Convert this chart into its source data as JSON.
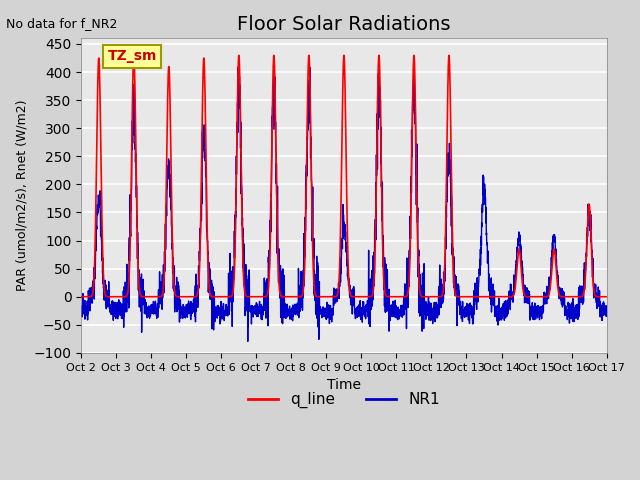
{
  "title": "Floor Solar Radiations",
  "no_data_text": "No data for f_NR2",
  "legend_box_text": "TZ_sm",
  "xlabel": "Time",
  "ylabel": "PAR (umol/m2/s), Rnet (W/m2)",
  "ylim": [
    -100,
    460
  ],
  "xlim": [
    0,
    15
  ],
  "x_tick_labels": [
    "Oct 2",
    "Oct 3",
    "Oct 4",
    "Oct 5",
    "Oct 6",
    "Oct 7",
    "Oct 8",
    "Oct 9",
    "Oct 10",
    "Oct 11",
    "Oct 12",
    "Oct 13",
    "Oct 14",
    "Oct 15",
    "Oct 16",
    "Oct 17"
  ],
  "line_red_color": "#FF0000",
  "line_blue_color": "#0000CC",
  "background_color": "#E8E8E8",
  "plot_bg_color": "#E8E8E8",
  "grid_color": "#FFFFFF",
  "title_fontsize": 14,
  "legend_fontsize": 11
}
